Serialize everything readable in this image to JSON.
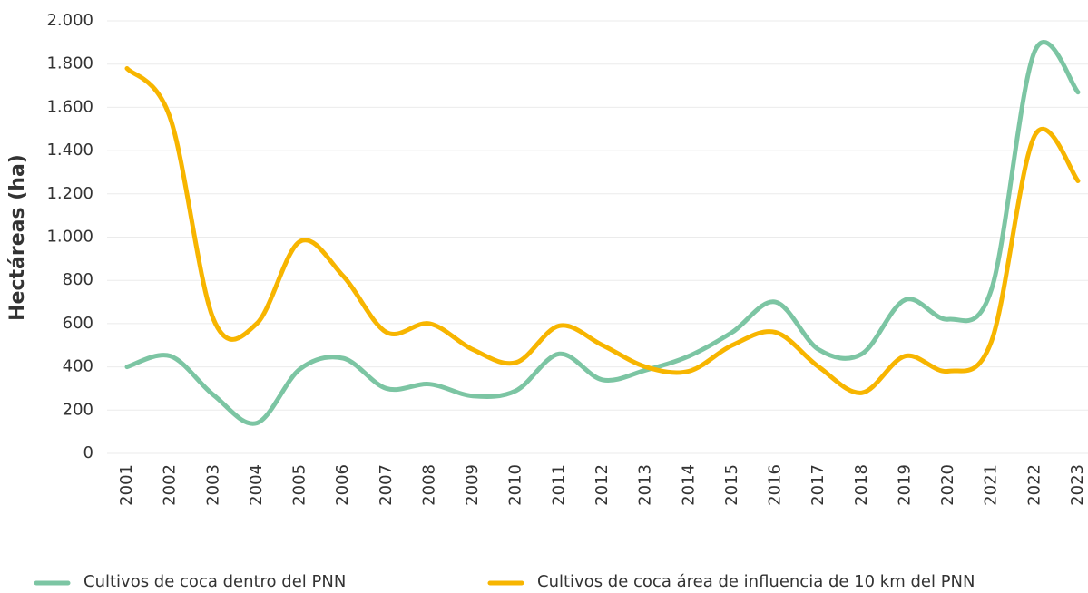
{
  "chart_data": {
    "type": "line",
    "y_label": "Hectáreas (ha)",
    "categories": [
      "2001",
      "2002",
      "2003",
      "2004",
      "2005",
      "2006",
      "2007",
      "2008",
      "2009",
      "2010",
      "2011",
      "2012",
      "2013",
      "2014",
      "2015",
      "2016",
      "2017",
      "2018",
      "2019",
      "2020",
      "2021",
      "2022",
      "2023"
    ],
    "series": [
      {
        "name": "Cultivos de coca dentro del PNN",
        "color": "#7cc5a3",
        "values": [
          400,
          450,
          270,
          140,
          390,
          440,
          300,
          320,
          265,
          290,
          460,
          340,
          385,
          450,
          560,
          700,
          480,
          460,
          710,
          620,
          760,
          1860,
          1670
        ]
      },
      {
        "name": "Cultivos de coca área de influencia de 10 km del PNN",
        "color": "#f7b500",
        "values": [
          1780,
          1550,
          620,
          600,
          980,
          820,
          560,
          600,
          480,
          420,
          590,
          500,
          400,
          380,
          500,
          560,
          400,
          280,
          450,
          380,
          520,
          1470,
          1260
        ]
      }
    ],
    "ylim": [
      0,
      2000
    ],
    "yticks": [
      0,
      {
        "value": 200,
        "label": "200"
      },
      {
        "value": 400,
        "label": "400"
      },
      {
        "value": 600,
        "label": "600"
      },
      {
        "value": 800,
        "label": "800"
      },
      {
        "value": 1000,
        "label": "1.000"
      },
      {
        "value": 1200,
        "label": "1.200"
      },
      {
        "value": 1400,
        "label": "1.400"
      },
      {
        "value": 1600,
        "label": "1.600"
      },
      {
        "value": 1800,
        "label": "1.800"
      },
      {
        "value": 2000,
        "label": "2.000"
      }
    ],
    "grid": true,
    "legend": "bottom"
  }
}
